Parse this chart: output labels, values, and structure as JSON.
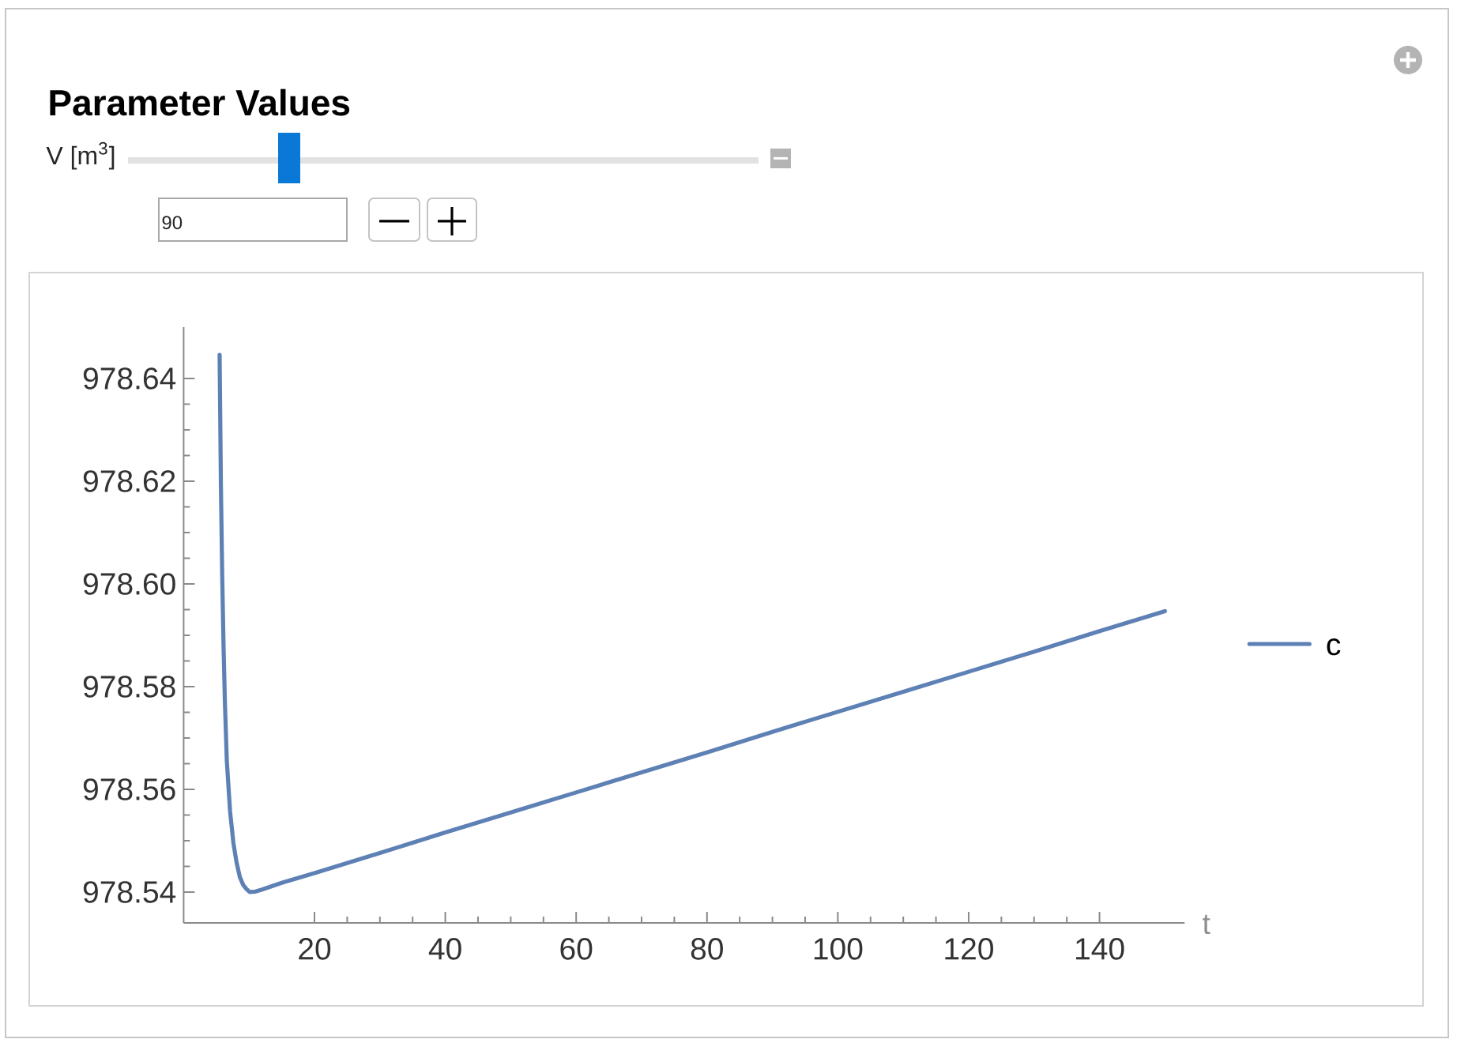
{
  "chart_data": {
    "type": "line",
    "title": "Parameter Values",
    "xlabel": "t",
    "annotations": [
      "V [m$^{3}$]",
      "90"
    ],
    "x": [
      5.5,
      5.7,
      5.9,
      6.1,
      6.3,
      6.6,
      7.1,
      7.6,
      8.1,
      8.6,
      9.1,
      9.6,
      10.1,
      11,
      12,
      15,
      20,
      30,
      40,
      50,
      60,
      70,
      80,
      90,
      100,
      110,
      120,
      130,
      140,
      150
    ],
    "series": [
      {
        "name": "c",
        "color": "#5e81b5",
        "values": [
          978.6446,
          978.6189,
          978.6014,
          978.5879,
          978.5773,
          978.5656,
          978.5557,
          978.5496,
          978.5457,
          978.5429,
          978.5414,
          978.5406,
          978.54,
          978.5401,
          978.5405,
          978.5418,
          978.5437,
          978.5476,
          978.5516,
          978.5555,
          978.5594,
          978.5633,
          978.5672,
          978.5712,
          978.5751,
          978.579,
          978.5829,
          978.5868,
          978.5908,
          978.5947
        ]
      }
    ],
    "xlim": [
      0,
      153
    ],
    "ylim": [
      978.534,
      978.65
    ],
    "xticks": [
      20,
      40,
      60,
      80,
      100,
      120,
      140
    ],
    "yticks": [
      978.54,
      978.56,
      978.58,
      {
        "value": 978.6,
        "label": "978.60"
      },
      978.62,
      978.64
    ],
    "legend": "right",
    "marker": "none",
    "line_style": "solid"
  }
}
